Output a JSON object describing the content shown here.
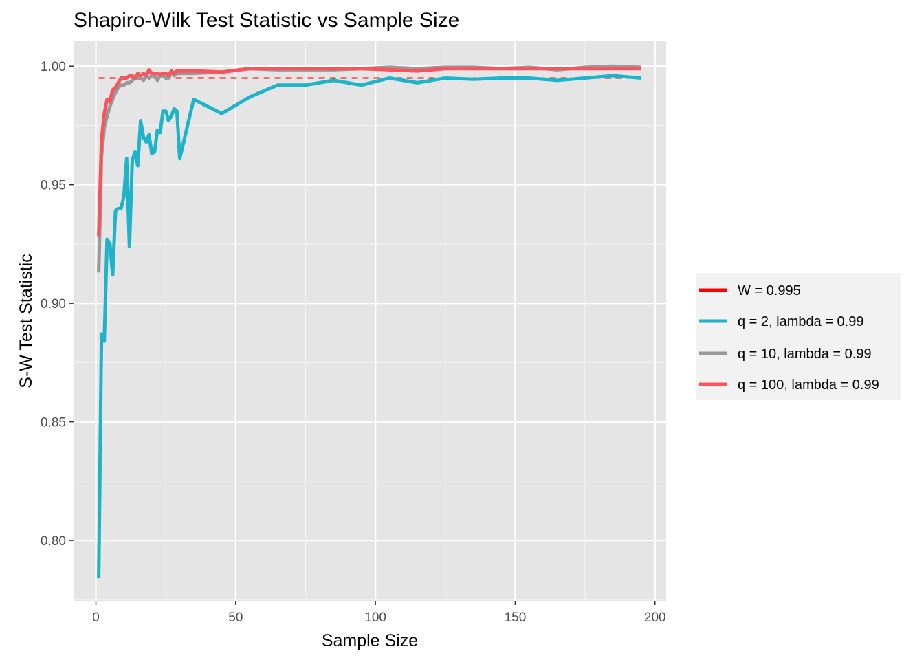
{
  "chart_data": {
    "type": "line",
    "title": "Shapiro-Wilk Test Statistic vs Sample Size",
    "xlabel": "Sample Size",
    "ylabel": "S-W Test Statistic",
    "xlim": [
      -8,
      204
    ],
    "ylim": [
      0.7745,
      1.0105
    ],
    "x_ticks": [
      0,
      50,
      100,
      150,
      200
    ],
    "x_tick_labels": [
      "0",
      "50",
      "100",
      "150",
      "200"
    ],
    "y_ticks": [
      0.8,
      0.85,
      0.9,
      0.95,
      1.0
    ],
    "y_tick_labels": [
      "0.80",
      "0.85",
      "0.90",
      "0.95",
      "1.00"
    ],
    "grid": true,
    "legend_position": "right",
    "reference_line": {
      "name": "W = 0.995",
      "y": 0.995,
      "x_range": [
        1,
        195
      ],
      "style": "dashed",
      "color": "#ff0000"
    },
    "series": [
      {
        "name": "q = 2, lambda = 0.99",
        "color": "#1fb3c9",
        "x": [
          1,
          2,
          3,
          4,
          5,
          6,
          7,
          8,
          9,
          10,
          11,
          12,
          13,
          14,
          15,
          16,
          17,
          18,
          19,
          20,
          21,
          22,
          23,
          24,
          25,
          26,
          27,
          28,
          29,
          30,
          35,
          45,
          55,
          65,
          75,
          85,
          95,
          105,
          115,
          125,
          135,
          145,
          155,
          165,
          175,
          185,
          195
        ],
        "y": [
          0.784,
          0.887,
          0.884,
          0.927,
          0.925,
          0.912,
          0.939,
          0.94,
          0.94,
          0.945,
          0.961,
          0.924,
          0.96,
          0.964,
          0.958,
          0.977,
          0.97,
          0.968,
          0.971,
          0.963,
          0.964,
          0.973,
          0.972,
          0.981,
          0.981,
          0.977,
          0.979,
          0.982,
          0.981,
          0.961,
          0.986,
          0.98,
          0.987,
          0.992,
          0.992,
          0.994,
          0.992,
          0.995,
          0.993,
          0.995,
          0.9945,
          0.995,
          0.995,
          0.994,
          0.995,
          0.996,
          0.995
        ]
      },
      {
        "name": "q = 10, lambda = 0.99",
        "color": "#999999",
        "x": [
          1,
          2,
          3,
          4,
          5,
          6,
          7,
          8,
          9,
          10,
          11,
          12,
          13,
          14,
          15,
          16,
          17,
          18,
          19,
          20,
          21,
          22,
          23,
          24,
          25,
          26,
          27,
          28,
          29,
          30,
          35,
          45,
          55,
          65,
          75,
          85,
          95,
          105,
          115,
          125,
          135,
          145,
          155,
          165,
          175,
          185,
          195
        ],
        "y": [
          0.913,
          0.962,
          0.974,
          0.979,
          0.983,
          0.986,
          0.989,
          0.991,
          0.992,
          0.992,
          0.993,
          0.993,
          0.994,
          0.995,
          0.995,
          0.995,
          0.994,
          0.996,
          0.995,
          0.996,
          0.996,
          0.994,
          0.996,
          0.996,
          0.995,
          0.995,
          0.997,
          0.996,
          0.997,
          0.997,
          0.997,
          0.9975,
          0.999,
          0.9985,
          0.9985,
          0.9985,
          0.999,
          0.9995,
          0.999,
          0.9995,
          0.9995,
          0.999,
          0.9995,
          0.9985,
          0.9995,
          1.0,
          0.9995
        ]
      },
      {
        "name": "q = 100, lambda = 0.99",
        "color": "#f8545b",
        "x": [
          1,
          2,
          3,
          4,
          5,
          6,
          7,
          8,
          9,
          10,
          11,
          12,
          13,
          14,
          15,
          16,
          17,
          18,
          19,
          20,
          21,
          22,
          23,
          24,
          25,
          26,
          27,
          28,
          29,
          30,
          35,
          45,
          55,
          65,
          75,
          85,
          95,
          105,
          115,
          125,
          135,
          145,
          155,
          165,
          175,
          185,
          195
        ],
        "y": [
          0.928,
          0.969,
          0.98,
          0.986,
          0.985,
          0.99,
          0.991,
          0.993,
          0.995,
          0.995,
          0.995,
          0.996,
          0.996,
          0.995,
          0.997,
          0.996,
          0.997,
          0.996,
          0.9985,
          0.997,
          0.997,
          0.997,
          0.9965,
          0.997,
          0.997,
          0.996,
          0.998,
          0.997,
          0.998,
          0.998,
          0.998,
          0.9975,
          0.999,
          0.999,
          0.999,
          0.999,
          0.999,
          0.9985,
          0.998,
          0.999,
          0.999,
          0.999,
          0.999,
          0.999,
          0.999,
          0.999,
          0.999
        ]
      }
    ],
    "legend": [
      {
        "label": "W = 0.995",
        "color": "#ff0000"
      },
      {
        "label": "q = 2, lambda = 0.99",
        "color": "#1fb3c9"
      },
      {
        "label": "q = 10, lambda = 0.99",
        "color": "#999999"
      },
      {
        "label": "q = 100, lambda = 0.99",
        "color": "#f8545b"
      }
    ]
  }
}
